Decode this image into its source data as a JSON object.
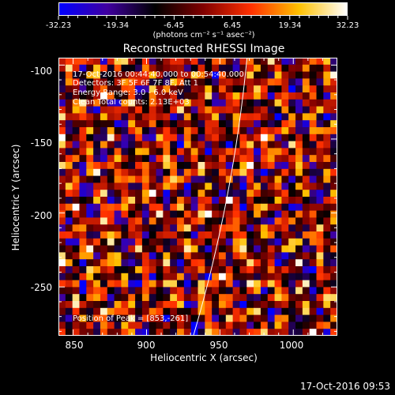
{
  "colorbar": {
    "labels": [
      "-32.23",
      "-19.34",
      "-6.45",
      "6.45",
      "19.34",
      "32.23"
    ],
    "units": "(photons cm⁻² s⁻¹ asec⁻²)",
    "range": [
      -32.23,
      32.23
    ]
  },
  "chart_data": {
    "type": "heatmap",
    "title": "Reconstructed RHESSI Image",
    "xlabel": "Heliocentric X (arcsec)",
    "ylabel": "Heliocentric Y (arcsec)",
    "xlim": [
      840,
      1030
    ],
    "ylim": [
      -283,
      -95
    ],
    "xticks": [
      "850",
      "900",
      "950",
      "1000"
    ],
    "yticks": [
      "-100",
      "-150",
      "-200",
      "-250"
    ],
    "colormap": [
      "#0000ff",
      "#4000a0",
      "#000000",
      "#800000",
      "#ff3000",
      "#ffc000",
      "#ffffff"
    ],
    "limb_line_color": "#ffffff",
    "peak_position": [
      853,
      -261
    ],
    "info_lines": [
      "17-Oct-2016 00:44:40.000 to 00:54:40.000",
      "Detectors: 3F 5F 6F 7F 8F, Att 1",
      "Energy Range: 3.0 - 6.0 keV",
      "Clean    Total counts: 2.13E+03"
    ],
    "peak_text": "Position of Peak = [853,-261]"
  },
  "footer": "17-Oct-2016 09:53"
}
